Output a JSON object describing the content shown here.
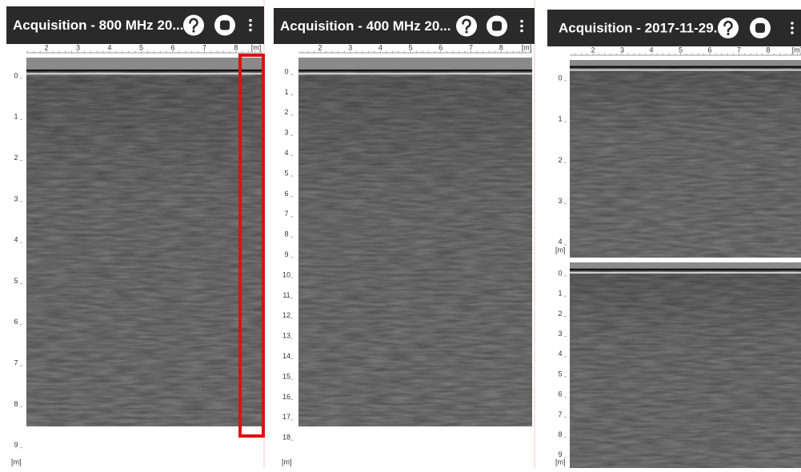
{
  "panels": [
    {
      "title": "Acquisition - 800 MHz  20...",
      "x_ticks": [
        "2",
        "3",
        "4",
        "5",
        "6",
        "7",
        "8"
      ],
      "x_unit": "[m]",
      "sections": [
        {
          "y_ticks": [
            "0",
            "1",
            "2",
            "3",
            "4",
            "5",
            "6",
            "7",
            "8",
            "9"
          ],
          "y_unit": "[m]"
        }
      ]
    },
    {
      "title": "Acquisition - 400 MHz  20...",
      "x_ticks": [
        "2",
        "3",
        "4",
        "5",
        "6",
        "7",
        "8"
      ],
      "x_unit": "[m]",
      "sections": [
        {
          "y_ticks": [
            "0",
            "1",
            "2",
            "3",
            "4",
            "5",
            "6",
            "7",
            "8",
            "9",
            "10",
            "11",
            "12",
            "13",
            "14",
            "15",
            "16",
            "17",
            "18"
          ],
          "y_unit": "[m]"
        }
      ]
    },
    {
      "title": "Acquisition -  2017-11-29...",
      "x_ticks": [
        "2",
        "3",
        "4",
        "5",
        "6",
        "7",
        "8"
      ],
      "x_unit": "[m]",
      "sections": [
        {
          "y_ticks": [
            "0",
            "1",
            "2",
            "3",
            "4"
          ],
          "y_unit": "[m]"
        },
        {
          "y_ticks": [
            "0",
            "1",
            "2",
            "3",
            "4",
            "5",
            "6",
            "7",
            "8",
            "9"
          ],
          "y_unit": "[m]"
        }
      ]
    }
  ]
}
